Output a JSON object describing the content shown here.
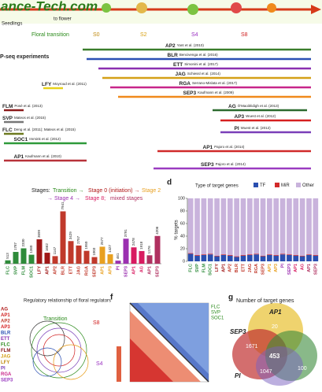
{
  "header": {
    "watermark": "ance-Tech.com",
    "to_flower": "to flower",
    "seedlings": "Seedlings",
    "transition": "Floral transition",
    "stages": [
      "S0",
      "S2",
      "S4",
      "S8"
    ]
  },
  "chip": {
    "title": "P-seq experiments",
    "experiments": [
      {
        "tf": "AP2",
        "ref": "Yant et al. (2010)",
        "color": "#3a7d2c"
      },
      {
        "tf": "BLR",
        "ref": "Bencivenga et al. (2016)",
        "color": "#2b4fb3"
      },
      {
        "tf": "ETT",
        "ref": "Simonini et al. (2017)",
        "color": "#8a2fb0"
      },
      {
        "tf": "JAG",
        "ref": "Schiessl et al. (2014)",
        "color": "#d4a017"
      },
      {
        "tf": "RGA",
        "ref": "Serrano-Mislata et al. (2017)",
        "color": "#c8268a"
      },
      {
        "tf": "SEP3",
        "ref": "Kaufmann et al. (2009)",
        "color": "#f08a1c"
      },
      {
        "tf": "LFY",
        "ref": "Moyroud et al. (2011)",
        "color": "#e8d21a"
      },
      {
        "tf": "AG",
        "ref": "Ó'Maoiléidigh et al. (2013)",
        "color": "#2c6b2f"
      },
      {
        "tf": "FLM",
        "ref": "Posé et al. (2013)",
        "color": "#8b1a1a"
      },
      {
        "tf": "AP3",
        "ref": "Wuest et al. (2012)",
        "color": "#d62020"
      },
      {
        "tf": "SVP",
        "ref": "Mateos et al. (2015)",
        "color": "#777777"
      },
      {
        "tf": "PI",
        "ref": "Wuest et al. (2012)",
        "color": "#7a3fb8"
      },
      {
        "tf": "FLC",
        "ref": "Deng et al. (2011); Mateos et al. (2015)",
        "color": "#6d7a1f"
      },
      {
        "tf": "SOC1",
        "ref": "Immink et al. (2012)",
        "color": "#2e9a3a"
      },
      {
        "tf": "AP1",
        "ref": "Pajoro et al. (2014)",
        "color": "#d02a2a"
      },
      {
        "tf": "AP1",
        "ref": "Kaufmann et al. (2010)",
        "color": "#b8323a"
      },
      {
        "tf": "SEP3",
        "ref": "Pajoro et al. (2014)",
        "color": "#9a3cc0"
      }
    ]
  },
  "stage_legend": {
    "label": "Stages:",
    "transition": "Transition →",
    "s0": "Stage 0 (initiation) →",
    "s2": "Stage 2",
    "s4": "→ Stage 4 →",
    "s8": "Stage 8;",
    "mixed": "mixed stages"
  },
  "panel_letters": [
    "d",
    "f",
    "g"
  ],
  "chart_data": [
    {
      "type": "bar",
      "categories": [
        "FLC",
        "SVP",
        "FLM",
        "SOC1",
        "LFY",
        "AP1",
        "AP2",
        "BLR",
        "ETT",
        "JAG",
        "RGA",
        "SEP3",
        "AP1",
        "AP3",
        "PI",
        "SEP3",
        "AP1",
        "AG",
        "AP1",
        "SEP3"
      ],
      "values": [
        513,
        1787,
        2330,
        1360,
        3699,
        1662,
        1147,
        7941,
        3429,
        2757,
        1950,
        1003,
        2577,
        1427,
        461,
        3791,
        2478,
        1918,
        1276,
        4206
      ],
      "colors": [
        "#2e8b3a",
        "#2e8b3a",
        "#2e8b3a",
        "#2e8b3a",
        "#a01818",
        "#a01818",
        "#c0392b",
        "#c0392b",
        "#c0392b",
        "#c0392b",
        "#c0392b",
        "#c0392b",
        "#e8a020",
        "#e8a020",
        "#9b30b0",
        "#9b30b0",
        "#d81b60",
        "#d81b60",
        "#b03060",
        "#b03060"
      ],
      "ylim": [
        0,
        8000
      ]
    },
    {
      "type": "stacked_bar",
      "ylabel": "% targets",
      "legend_title": "Type of target genes",
      "categories": [
        "FLC",
        "SVP",
        "FLM",
        "SOC1",
        "LFY",
        "AP1",
        "AP2",
        "BLR",
        "ETT",
        "JAG",
        "RGA",
        "SEP3",
        "AP1",
        "AP3",
        "PI",
        "SEP3",
        "AP1",
        "AG",
        "AP1",
        "SEP3"
      ],
      "series": [
        {
          "name": "TF",
          "color": "#2a4fb0",
          "values": [
            12,
            9,
            10,
            11,
            8,
            10,
            9,
            7,
            9,
            10,
            11,
            8,
            10,
            9,
            11,
            10,
            9,
            8,
            10,
            9
          ]
        },
        {
          "name": "MiR",
          "color": "#d22a2a",
          "values": [
            1,
            1,
            1,
            1,
            1,
            1,
            1,
            1,
            1,
            1,
            1,
            1,
            1,
            1,
            1,
            1,
            1,
            1,
            1,
            1
          ]
        },
        {
          "name": "Other",
          "color": "#c9b3dc",
          "values": [
            87,
            90,
            89,
            88,
            91,
            89,
            90,
            92,
            90,
            89,
            88,
            91,
            89,
            90,
            88,
            89,
            90,
            91,
            89,
            90
          ]
        }
      ],
      "ylim": [
        0,
        100
      ],
      "yticks": [
        0,
        20,
        40,
        60,
        80,
        100
      ]
    }
  ],
  "network": {
    "title": "Regulatory relationship of floral regulators",
    "transition": "Transition",
    "s8": "S8",
    "s4": "S4",
    "labels": [
      "AG",
      "AP1",
      "AP2",
      "AP3",
      "BLR",
      "ETT",
      "FLC",
      "FLM",
      "JAG",
      "LFY",
      "PI",
      "RGA",
      "SEP3"
    ]
  },
  "heatmap": {
    "labels": [
      "FLC",
      "SVP",
      "SOC1"
    ]
  },
  "venn": {
    "title": "Number of target genes",
    "sets": [
      "AP1",
      "SEP3",
      "PI"
    ],
    "counts": [
      "20",
      "1671",
      "453",
      "1047",
      "100"
    ]
  }
}
